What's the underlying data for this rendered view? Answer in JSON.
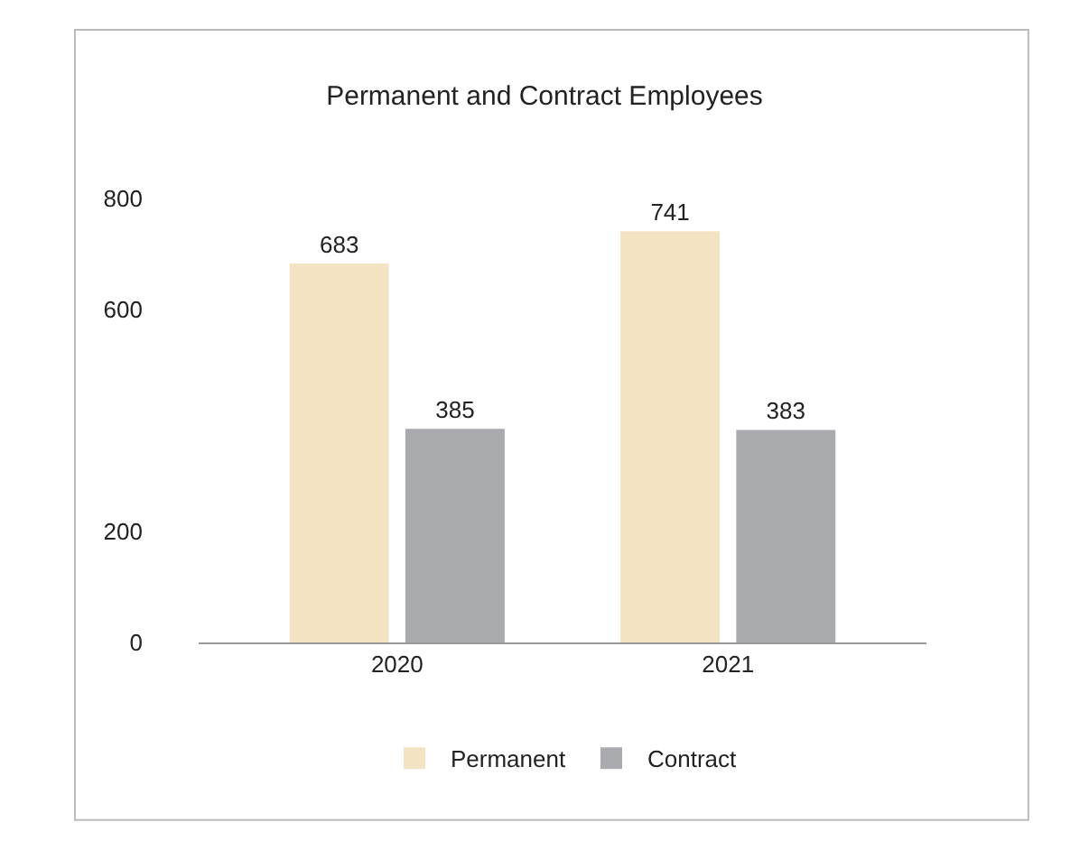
{
  "chart_data": {
    "type": "bar",
    "title": "Permanent and Contract Employees",
    "categories": [
      "2020",
      "2021"
    ],
    "series": [
      {
        "name": "Permanent",
        "color": "#f3e3c3",
        "values": [
          683,
          741
        ]
      },
      {
        "name": "Contract",
        "color": "#a9aaad",
        "values": [
          385,
          383
        ]
      }
    ],
    "ylim": [
      0,
      800
    ],
    "yticks": [
      0,
      200,
      600,
      800
    ],
    "legend": "bottom",
    "data_labels": true
  }
}
